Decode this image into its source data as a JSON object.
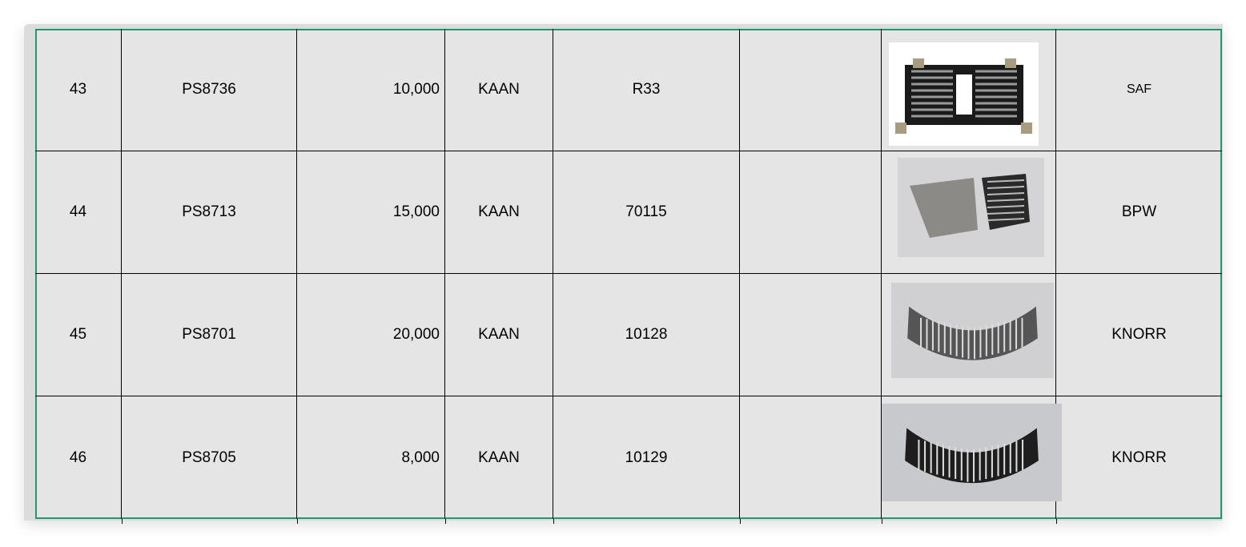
{
  "rows": [
    {
      "no": "43",
      "code": "PS8736",
      "qty": "10,000",
      "brand": "KAAN",
      "ref": "R33",
      "note": "",
      "image": "bearing-cage-flat-black",
      "oem": "SAF"
    },
    {
      "no": "44",
      "code": "PS8713",
      "qty": "15,000",
      "brand": "KAAN",
      "ref": "70115",
      "note": "",
      "image": "bearing-cage-shell-pair",
      "oem": "BPW"
    },
    {
      "no": "45",
      "code": "PS8701",
      "qty": "20,000",
      "brand": "KAAN",
      "ref": "10128",
      "note": "",
      "image": "bearing-half-shell",
      "oem": "KNORR"
    },
    {
      "no": "46",
      "code": "PS8705",
      "qty": "8,000",
      "brand": "KAAN",
      "ref": "10129",
      "note": "",
      "image": "bearing-half-shell-black",
      "oem": "KNORR"
    }
  ],
  "colors": {
    "border": "#1a9a6e",
    "cell_bg": "#e5e5e5"
  }
}
